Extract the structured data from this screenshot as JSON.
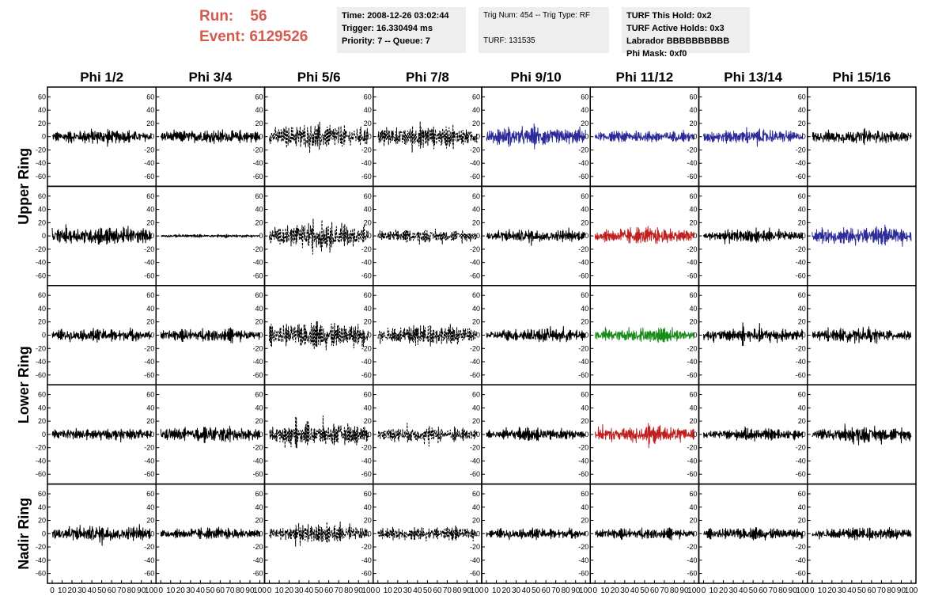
{
  "header": {
    "run_label": "Run:",
    "run_value": "56",
    "event_label": "Event:",
    "event_value": "6129526",
    "time": "Time: 2008-12-26 03:02:44",
    "trigger": "Trigger: 16.330494 ms",
    "priority": "Priority: 7 -- Queue: 7",
    "trig": "Trig Num: 454 -- Trig Type: RF",
    "turf": "TURF: 131535",
    "turf_hold": "TURF This Hold: 0x2",
    "turf_active": "TURF Active Holds: 0x3",
    "labrador": "Labrador BBBBBBBBBB",
    "phi_mask": "Phi Mask: 0xf0"
  },
  "colors": {
    "run_text": "#d45a50",
    "trace_default": "#000000",
    "trace_blue": "#2b2b9a",
    "trace_red": "#c02020",
    "trace_green": "#1a8c1a",
    "info_bg": "#eeeeee"
  },
  "chart_data": {
    "type": "line",
    "columns": [
      "Phi 1/2",
      "Phi 3/4",
      "Phi 5/6",
      "Phi 7/8",
      "Phi 9/10",
      "Phi 11/12",
      "Phi 13/14",
      "Phi 15/16"
    ],
    "row_groups": [
      {
        "label": "Upper Ring",
        "rows": 2
      },
      {
        "label": "Lower Ring",
        "rows": 2
      },
      {
        "label": "Nadir Ring",
        "rows": 1
      }
    ],
    "ylim": [
      -70,
      70
    ],
    "yticks": [
      -60,
      -40,
      -20,
      0,
      20,
      40,
      60
    ],
    "xlim": [
      0,
      100
    ],
    "xtick_labels": [
      "0",
      "10",
      "20",
      "30",
      "40",
      "50",
      "60",
      "70",
      "80",
      "90",
      "100"
    ],
    "panels": [
      [
        {
          "color": "black",
          "style": "solid",
          "amp": 14
        },
        {
          "color": "black",
          "style": "solid",
          "amp": 14
        },
        {
          "color": "black",
          "style": "dashed",
          "amp": 26
        },
        {
          "color": "black",
          "style": "dashed",
          "amp": 22
        },
        {
          "color": "blue",
          "style": "solid",
          "amp": 18
        },
        {
          "color": "blue",
          "style": "solid",
          "amp": 12
        },
        {
          "color": "blue",
          "style": "solid",
          "amp": 14
        },
        {
          "color": "black",
          "style": "solid",
          "amp": 14
        }
      ],
      [
        {
          "color": "black",
          "style": "solid",
          "amp": 18
        },
        {
          "color": "black",
          "style": "solid",
          "amp": 3
        },
        {
          "color": "black",
          "style": "dashed",
          "amp": 26
        },
        {
          "color": "black",
          "style": "dashed",
          "amp": 12
        },
        {
          "color": "black",
          "style": "solid",
          "amp": 13
        },
        {
          "color": "red",
          "style": "solid",
          "amp": 16
        },
        {
          "color": "black",
          "style": "solid",
          "amp": 12
        },
        {
          "color": "blue",
          "style": "solid",
          "amp": 17
        }
      ],
      [
        {
          "color": "black",
          "style": "solid",
          "amp": 13
        },
        {
          "color": "black",
          "style": "solid",
          "amp": 13
        },
        {
          "color": "black",
          "style": "dashed",
          "amp": 27
        },
        {
          "color": "black",
          "style": "dashed",
          "amp": 20
        },
        {
          "color": "black",
          "style": "solid",
          "amp": 13
        },
        {
          "color": "green",
          "style": "solid",
          "amp": 14
        },
        {
          "color": "black",
          "style": "solid",
          "amp": 14
        },
        {
          "color": "black",
          "style": "solid",
          "amp": 13
        }
      ],
      [
        {
          "color": "black",
          "style": "solid",
          "amp": 12
        },
        {
          "color": "black",
          "style": "solid",
          "amp": 15
        },
        {
          "color": "black",
          "style": "dashed",
          "amp": 22
        },
        {
          "color": "black",
          "style": "dashed",
          "amp": 16
        },
        {
          "color": "black",
          "style": "solid",
          "amp": 12
        },
        {
          "color": "red",
          "style": "solid",
          "amp": 16
        },
        {
          "color": "black",
          "style": "solid",
          "amp": 11
        },
        {
          "color": "black",
          "style": "solid",
          "amp": 15
        }
      ],
      [
        {
          "color": "black",
          "style": "solid",
          "amp": 16
        },
        {
          "color": "black",
          "style": "solid",
          "amp": 11
        },
        {
          "color": "black",
          "style": "dashed",
          "amp": 18
        },
        {
          "color": "black",
          "style": "dashed",
          "amp": 13
        },
        {
          "color": "black",
          "style": "solid",
          "amp": 11
        },
        {
          "color": "black",
          "style": "solid",
          "amp": 11
        },
        {
          "color": "black",
          "style": "solid",
          "amp": 12
        },
        {
          "color": "black",
          "style": "solid",
          "amp": 12
        }
      ]
    ]
  }
}
